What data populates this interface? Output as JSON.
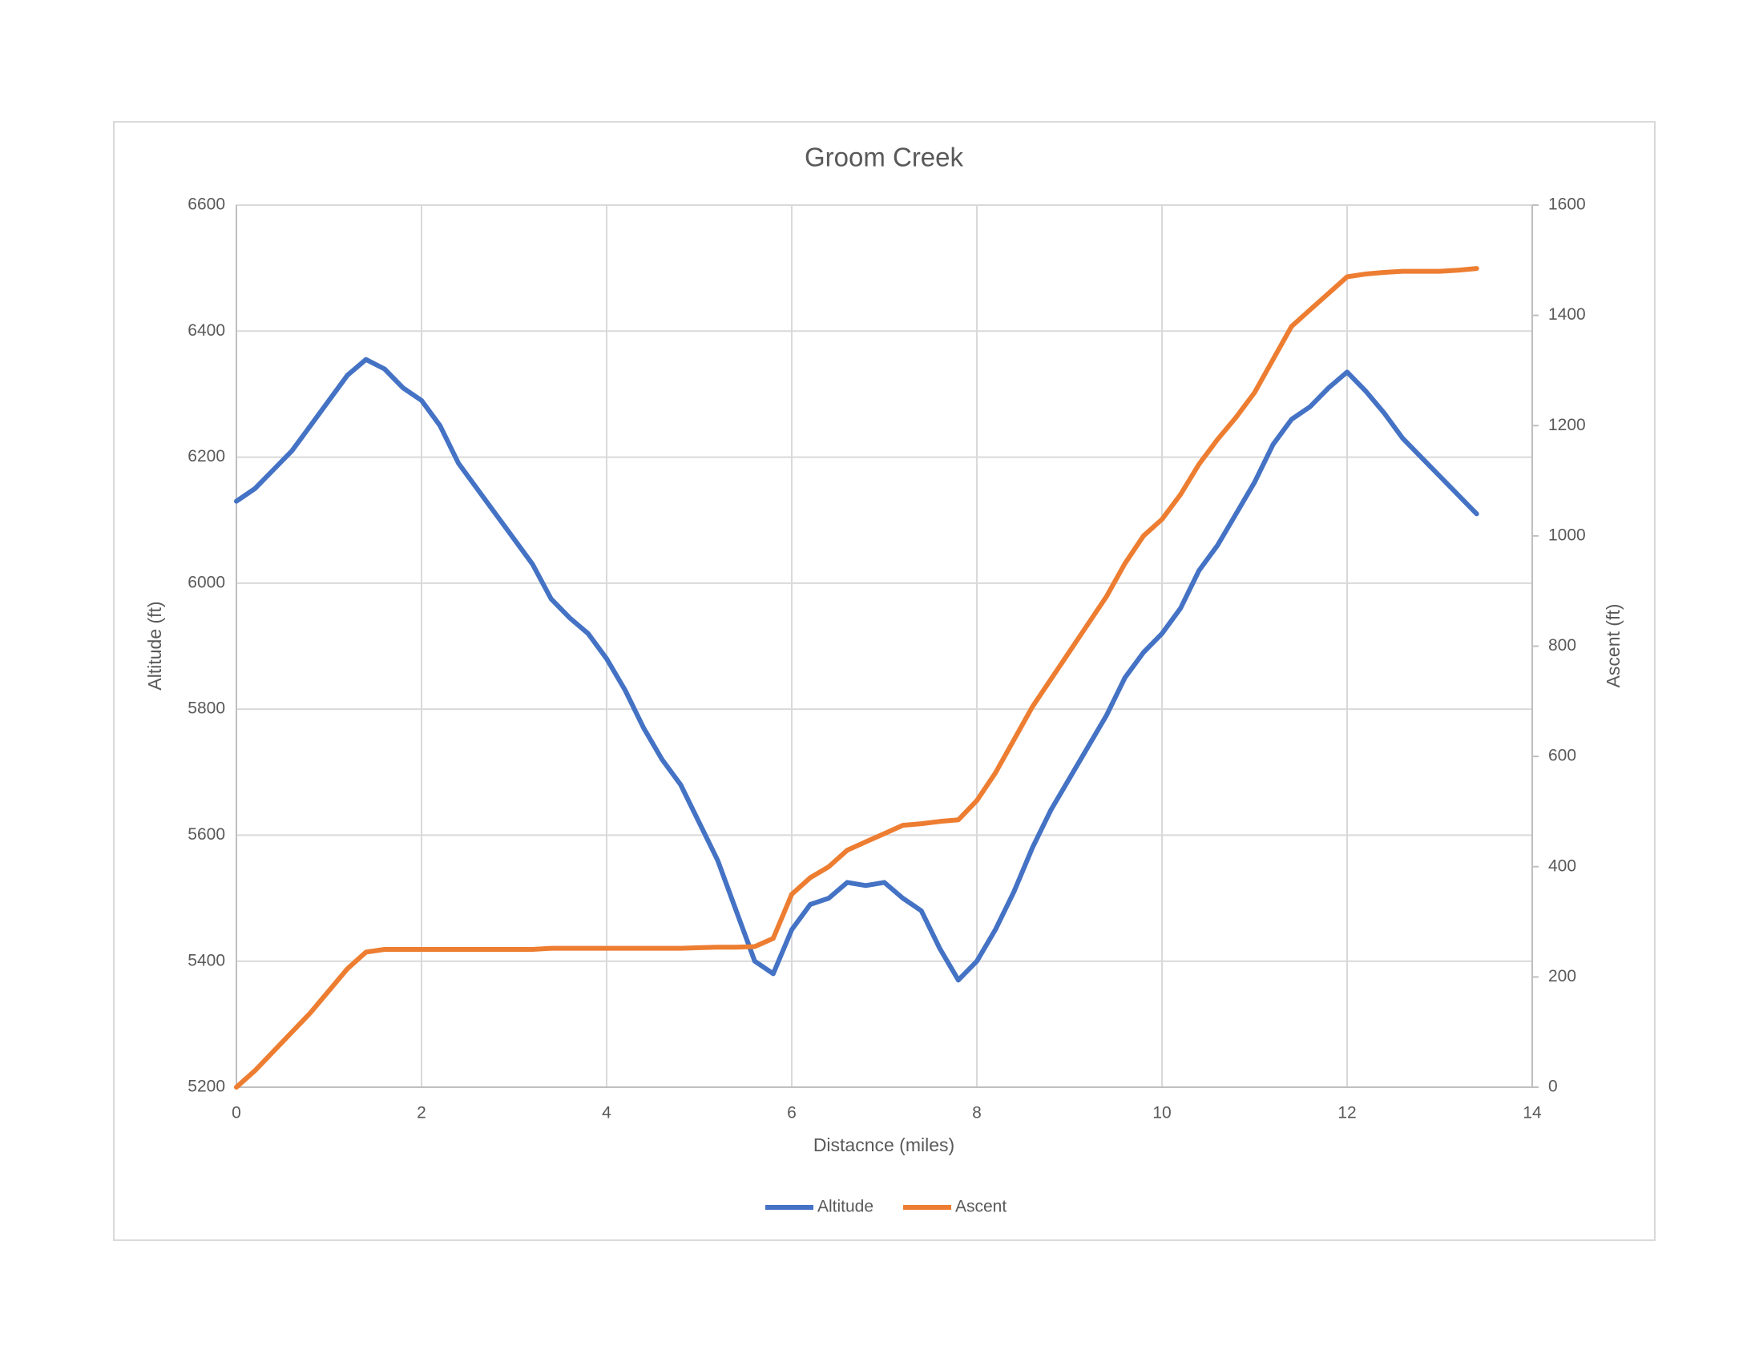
{
  "chart_data": {
    "type": "line",
    "title": "Groom Creek",
    "x_label": "Distacnce (miles)",
    "y_label": "Altitude (ft)",
    "y2_label": "Ascent (ft)",
    "x": [
      0,
      0.2,
      0.4,
      0.6,
      0.8,
      1.0,
      1.2,
      1.4,
      1.6,
      1.8,
      2.0,
      2.2,
      2.4,
      2.6,
      2.8,
      3.0,
      3.2,
      3.4,
      3.6,
      3.8,
      4.0,
      4.2,
      4.4,
      4.6,
      4.8,
      5.0,
      5.2,
      5.4,
      5.6,
      5.8,
      6.0,
      6.2,
      6.4,
      6.6,
      6.8,
      7.0,
      7.2,
      7.4,
      7.6,
      7.8,
      8.0,
      8.2,
      8.4,
      8.6,
      8.8,
      9.0,
      9.2,
      9.4,
      9.6,
      9.8,
      10.0,
      10.2,
      10.4,
      10.6,
      10.8,
      11.0,
      11.2,
      11.4,
      11.6,
      11.8,
      12.0,
      12.2,
      12.4,
      12.6,
      12.8,
      13.0,
      13.2,
      13.4
    ],
    "series": [
      {
        "name": "Altitude",
        "color": "#4472c4",
        "axis": "y",
        "values": [
          6130,
          6150,
          6180,
          6210,
          6250,
          6290,
          6330,
          6355,
          6340,
          6310,
          6290,
          6250,
          6190,
          6150,
          6110,
          6070,
          6030,
          5975,
          5945,
          5920,
          5880,
          5830,
          5770,
          5720,
          5680,
          5620,
          5560,
          5480,
          5400,
          5380,
          5450,
          5490,
          5500,
          5525,
          5520,
          5525,
          5500,
          5480,
          5420,
          5370,
          5400,
          5450,
          5510,
          5580,
          5640,
          5690,
          5740,
          5790,
          5850,
          5890,
          5920,
          5960,
          6020,
          6060,
          6110,
          6160,
          6220,
          6260,
          6280,
          6310,
          6335,
          6305,
          6270,
          6230,
          6200,
          6170,
          6140,
          6110
        ]
      },
      {
        "name": "Ascent",
        "color": "#ed7d31",
        "axis": "y2",
        "values": [
          0,
          30,
          65,
          100,
          135,
          175,
          215,
          245,
          250,
          250,
          250,
          250,
          250,
          250,
          250,
          250,
          250,
          252,
          252,
          252,
          252,
          252,
          252,
          252,
          252,
          253,
          254,
          254,
          255,
          270,
          350,
          380,
          400,
          430,
          445,
          460,
          475,
          478,
          482,
          485,
          520,
          570,
          630,
          690,
          740,
          790,
          840,
          890,
          950,
          1000,
          1030,
          1075,
          1130,
          1175,
          1215,
          1260,
          1320,
          1380,
          1410,
          1440,
          1470,
          1475,
          1478,
          1480,
          1480,
          1480,
          1482,
          1485
        ]
      }
    ],
    "xlim": [
      0,
      14
    ],
    "xticks": [
      0,
      2,
      4,
      6,
      8,
      10,
      12,
      14
    ],
    "ylim": [
      5200,
      6600
    ],
    "yticks": [
      5200,
      5400,
      5600,
      5800,
      6000,
      6200,
      6400,
      6600
    ],
    "y2lim": [
      0,
      1600
    ],
    "y2ticks": [
      0,
      200,
      400,
      600,
      800,
      1000,
      1200,
      1400,
      1600
    ],
    "grid": true,
    "legend": "bottom"
  }
}
